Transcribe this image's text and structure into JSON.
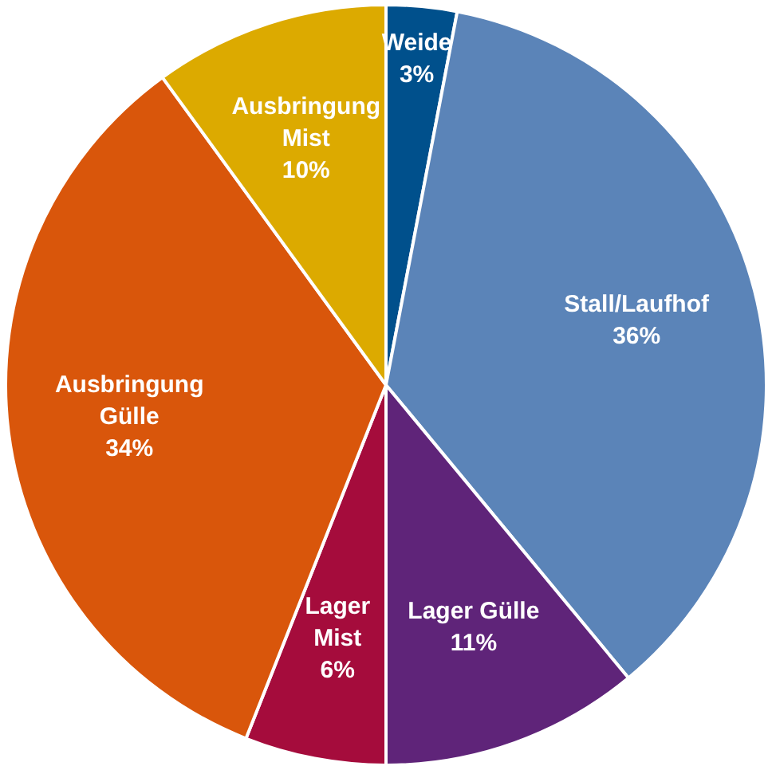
{
  "chart_data": {
    "type": "pie",
    "categories": [
      "Weide",
      "Stall/Laufhof",
      "Lager Gülle",
      "Lager Mist",
      "Ausbringung Gülle",
      "Ausbringung Mist"
    ],
    "values": [
      3,
      36,
      11,
      6,
      34,
      10
    ],
    "colors": [
      "#00508c",
      "#5b84b8",
      "#5f2479",
      "#a50c3c",
      "#d9560b",
      "#dcaa00"
    ],
    "value_labels": [
      "3%",
      "36%",
      "11%",
      "6%",
      "34%",
      "10%"
    ],
    "legend": false
  }
}
